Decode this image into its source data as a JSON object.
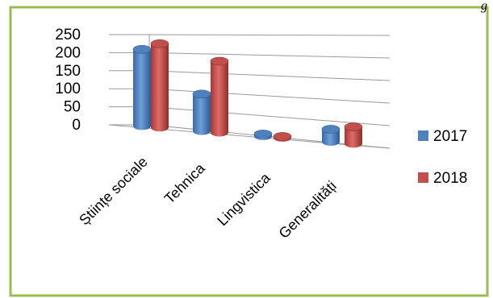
{
  "corner_text": "g",
  "colors": {
    "frame_border": "#9bbb59",
    "series_2017": "#4f81bd",
    "series_2018": "#c0504d",
    "grid": "#9a9a9a"
  },
  "chart_data": {
    "type": "bar",
    "style": "3d-cylinder",
    "categories": [
      "Științe sociale",
      "Tehnica",
      "Lingvistica",
      "Generalități"
    ],
    "series": [
      {
        "name": "2017",
        "values": [
          183,
          88,
          5,
          30
        ]
      },
      {
        "name": "2018",
        "values": [
          200,
          170,
          3,
          40
        ]
      }
    ],
    "yticks": [
      "0",
      "50",
      "100",
      "150",
      "200",
      "250"
    ],
    "ylim": [
      0,
      250
    ],
    "grid": true,
    "legend_position": "right"
  }
}
